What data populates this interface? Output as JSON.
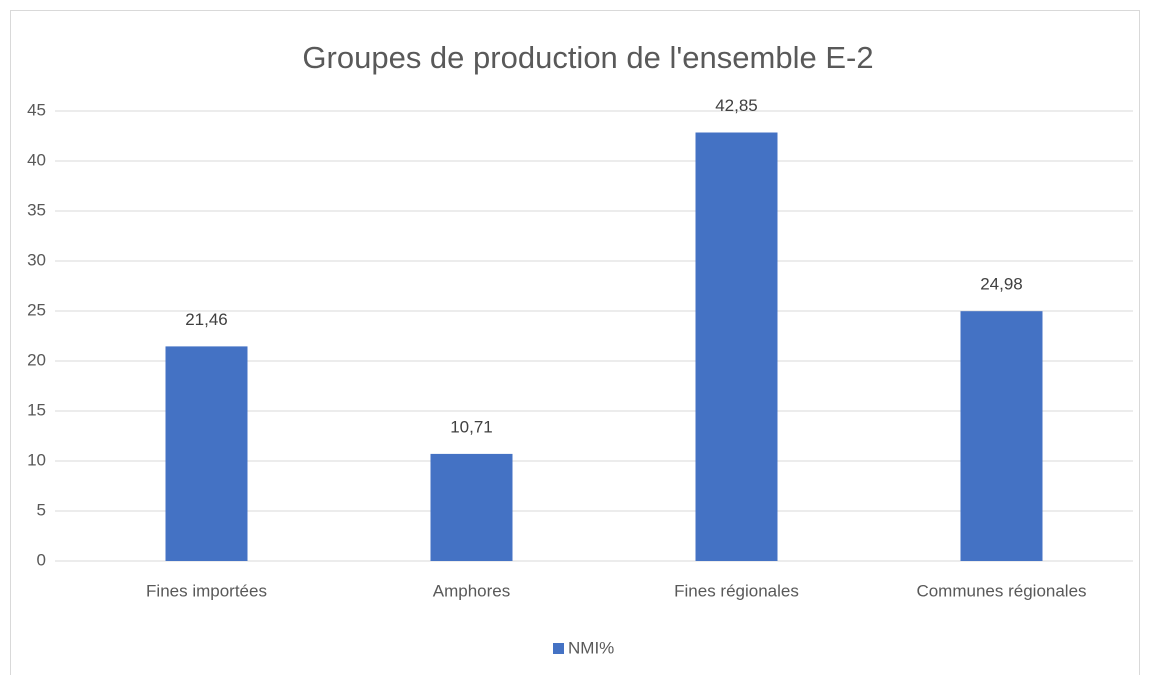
{
  "chart_data": {
    "type": "bar",
    "title": "Groupes de production de l'ensemble E-2",
    "categories": [
      "Fines importées",
      "Amphores",
      "Fines régionales",
      "Communes régionales"
    ],
    "series": [
      {
        "name": "NMI%",
        "color": "#4472c4",
        "values": [
          21.46,
          10.71,
          42.85,
          24.98
        ],
        "value_labels": [
          "21,46",
          "10,71",
          "42,85",
          "24,98"
        ]
      }
    ],
    "ylim": [
      0,
      45
    ],
    "yticks": [
      0,
      5,
      10,
      15,
      20,
      25,
      30,
      35,
      40,
      45
    ],
    "grid": true,
    "legend": "bottom"
  }
}
